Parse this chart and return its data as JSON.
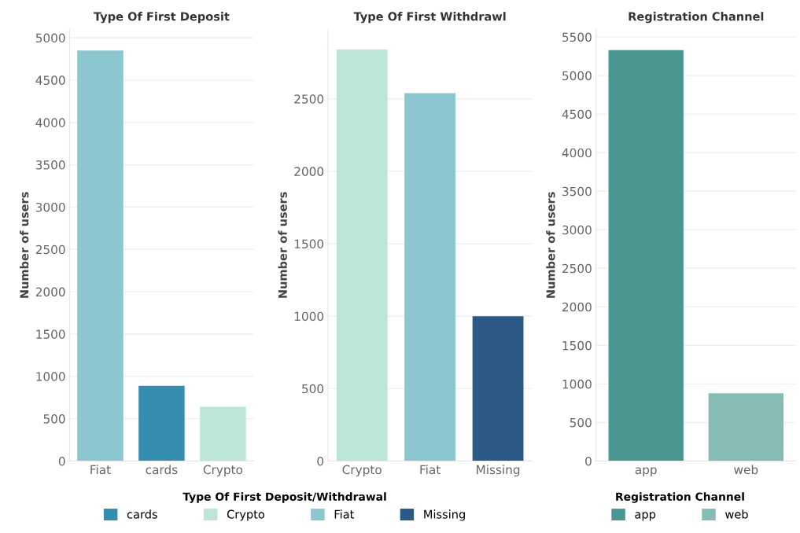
{
  "chart_data": [
    {
      "type": "bar",
      "title": "Type Of First Deposit",
      "ylabel": "Number of users",
      "categories": [
        "Fiat",
        "cards",
        "Crypto"
      ],
      "series": [
        {
          "name": "cards",
          "color": "#358ead",
          "values": [
            null,
            890,
            null
          ]
        },
        {
          "name": "Crypto",
          "color": "#bce4d8",
          "values": [
            null,
            null,
            640
          ]
        },
        {
          "name": "Fiat",
          "color": "#8cc6ce",
          "values": [
            4850,
            null,
            null
          ]
        }
      ],
      "ylim": [
        0,
        5100
      ],
      "yticks": [
        0,
        500,
        1000,
        1500,
        2000,
        2500,
        3000,
        3500,
        4000,
        4500,
        5000
      ],
      "grid": "y",
      "legend": "bottom",
      "legend_title": "Type Of First Deposit/Withdrawal"
    },
    {
      "type": "bar",
      "title": "Type Of First Withdrawl",
      "ylabel": "Number of users",
      "categories": [
        "Crypto",
        "Fiat",
        "Missing"
      ],
      "series": [
        {
          "name": "Crypto",
          "color": "#bce4d8",
          "values": [
            2840,
            null,
            null
          ]
        },
        {
          "name": "Fiat",
          "color": "#8cc6ce",
          "values": [
            null,
            2540,
            null
          ]
        },
        {
          "name": "Missing",
          "color": "#2c5985",
          "values": [
            null,
            null,
            1000
          ]
        }
      ],
      "ylim": [
        0,
        2980
      ],
      "yticks": [
        0,
        500,
        1000,
        1500,
        2000,
        2500
      ],
      "grid": "y"
    },
    {
      "type": "bar",
      "title": "Registration Channel",
      "ylabel": "Number of users",
      "categories": [
        "app",
        "web"
      ],
      "series": [
        {
          "name": "app",
          "color": "#4a9790",
          "values": [
            5330,
            null
          ]
        },
        {
          "name": "web",
          "color": "#86bcb4",
          "values": [
            null,
            880
          ]
        }
      ],
      "ylim": [
        0,
        5600
      ],
      "yticks": [
        0,
        500,
        1000,
        1500,
        2000,
        2500,
        3000,
        3500,
        4000,
        4500,
        5000,
        5500
      ],
      "grid": "y",
      "legend": "bottom",
      "legend_title": "Registration Channel"
    }
  ]
}
